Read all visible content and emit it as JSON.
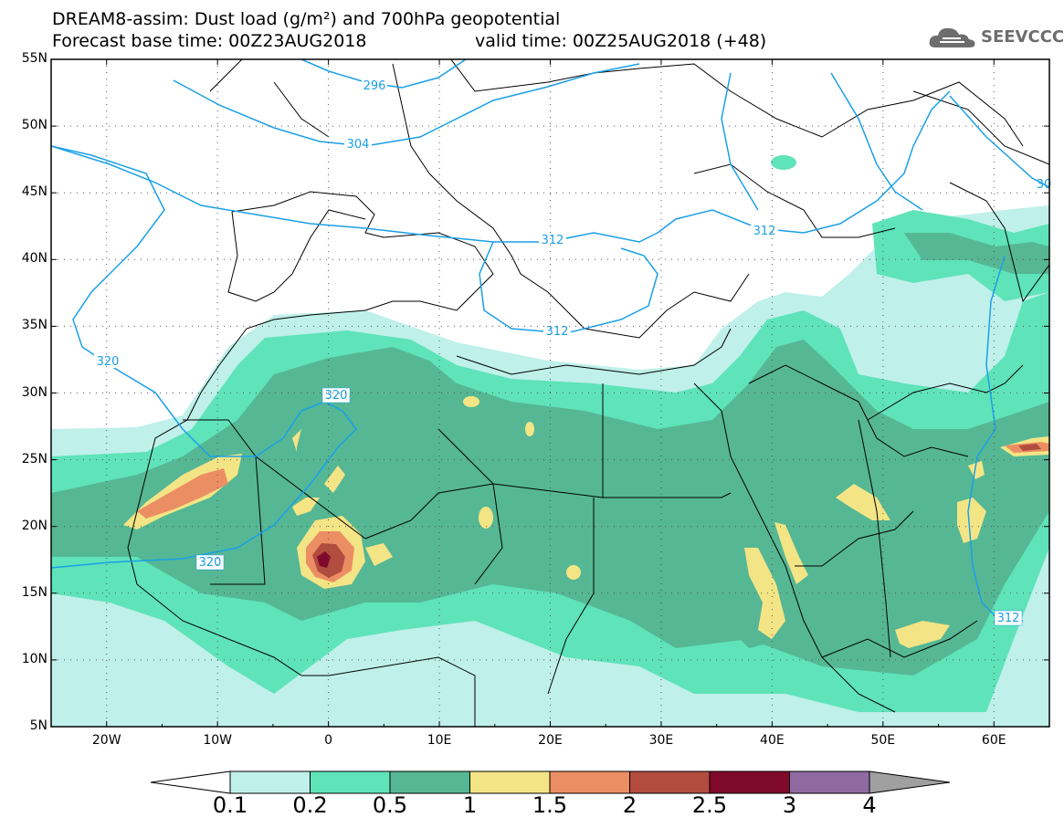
{
  "title": {
    "line1": "DREAM8-assim: Dust load (g/m²) and 700hPa geopotential",
    "line2_left": "Forecast base time: 00Z23AUG2018",
    "line2_right": "valid time: 00Z25AUG2018 (+48)"
  },
  "logo": {
    "text": "SEEVCCC",
    "icon": "cloud-icon"
  },
  "map": {
    "projection": "lat-lon",
    "lon_range": [
      -25,
      65
    ],
    "lat_range": [
      5,
      55
    ],
    "lat_ticks": [
      "55N",
      "50N",
      "45N",
      "40N",
      "35N",
      "30N",
      "25N",
      "20N",
      "15N",
      "10N",
      "5N"
    ],
    "lon_ticks": [
      "20W",
      "10W",
      "0",
      "10E",
      "20E",
      "30E",
      "40E",
      "50E",
      "60E"
    ],
    "colors": {
      "level_0_1": "#bff0ea",
      "level_0_2": "#5fe3b9",
      "level_0_5": "#56b794",
      "level_1": "#f3e585",
      "level_1_5": "#ec8e63",
      "level_2": "#b14c3f",
      "level_2_5": "#7f0a2c",
      "contour": "#1aa0e8",
      "coast": "#000000"
    },
    "contour_labels": [
      "296",
      "304",
      "312",
      "312",
      "312",
      "320",
      "320",
      "320",
      "312",
      "30"
    ]
  },
  "colorbar": {
    "labels": [
      "0.1",
      "0.2",
      "0.5",
      "1",
      "1.5",
      "2",
      "2.5",
      "3",
      "4"
    ],
    "colors": [
      "#bff0ea",
      "#5fe3b9",
      "#56b794",
      "#f3e585",
      "#ec8e63",
      "#b14c3f",
      "#7f0a2c",
      "#8e6aa1"
    ]
  }
}
